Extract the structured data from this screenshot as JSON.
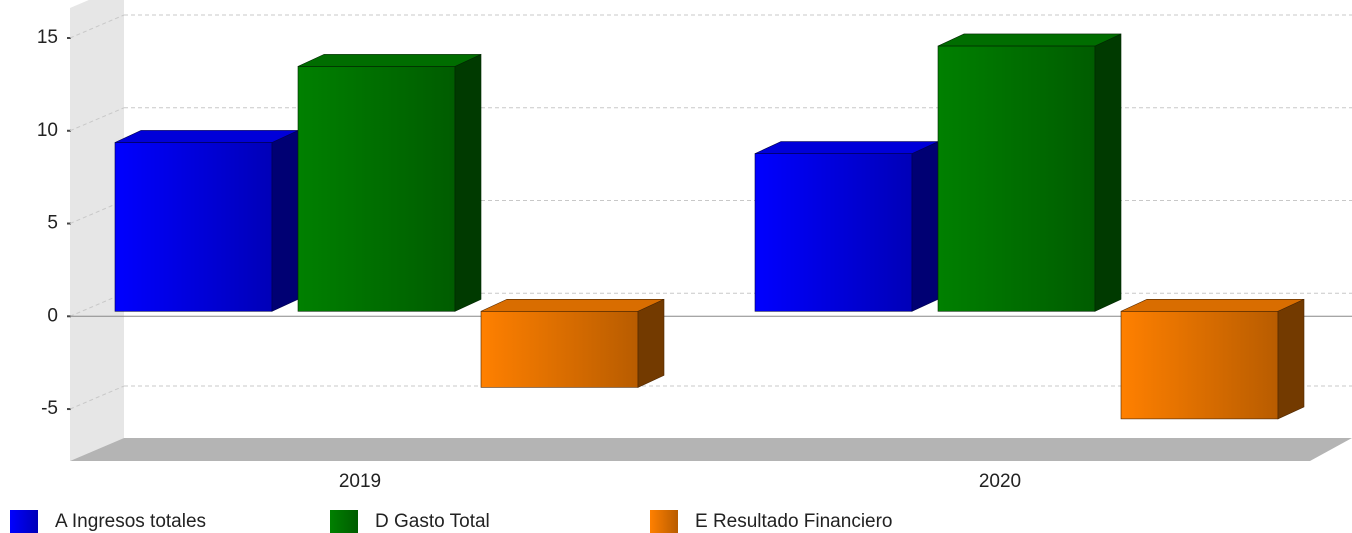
{
  "chart_data": {
    "type": "bar3d",
    "categories": [
      "2019",
      "2020"
    ],
    "series": [
      {
        "name": "A Ingresos totales",
        "color": "#0000ff",
        "values": [
          9.1,
          8.5
        ]
      },
      {
        "name": "D Gasto Total",
        "color": "#008000",
        "values": [
          13.2,
          14.3
        ]
      },
      {
        "name": "E Resultado Financiero",
        "color": "#ff8000",
        "values": [
          -4.1,
          -5.8
        ]
      }
    ],
    "ylim": [
      -7.8,
      15
    ],
    "yticks": [
      -5,
      0,
      5,
      10,
      15
    ],
    "grid": true,
    "legend": "bottom"
  }
}
